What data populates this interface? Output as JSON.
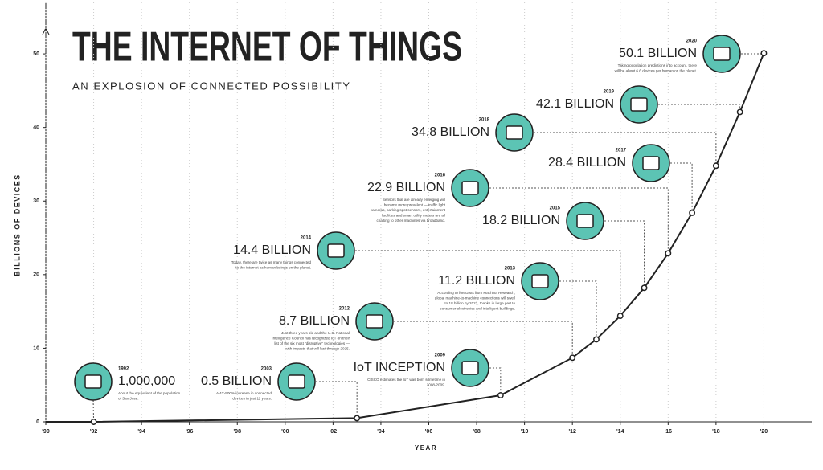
{
  "chart_data": {
    "type": "line",
    "title": "THE INTERNET OF THINGS",
    "subtitle": "AN EXPLOSION OF CONNECTED POSSIBILITY",
    "y_label": "BILLIONS OF DEVICES",
    "x_label": "YEAR",
    "x": [
      1990,
      1992,
      2003,
      2009,
      2012,
      2013,
      2014,
      2015,
      2016,
      2017,
      2018,
      2019,
      2020
    ],
    "values": [
      0,
      0.001,
      0.5,
      3.6,
      8.7,
      11.2,
      14.4,
      18.2,
      22.9,
      28.4,
      34.8,
      42.1,
      50.1
    ],
    "color": "#222222",
    "icon_color": "#5cc4b4",
    "xlim": [
      1990,
      2022
    ],
    "ylim": [
      0,
      57
    ],
    "xticks": [
      {
        "value": 1990,
        "label": "'90"
      },
      {
        "value": 1992,
        "label": "'92"
      },
      {
        "value": 1994,
        "label": "'94"
      },
      {
        "value": 1996,
        "label": "'96"
      },
      {
        "value": 1998,
        "label": "'98"
      },
      {
        "value": 2000,
        "label": "'00"
      },
      {
        "value": 2002,
        "label": "'02"
      },
      {
        "value": 2004,
        "label": "'04"
      },
      {
        "value": 2006,
        "label": "'06"
      },
      {
        "value": 2008,
        "label": "'08"
      },
      {
        "value": 2010,
        "label": "'10"
      },
      {
        "value": 2012,
        "label": "'12"
      },
      {
        "value": 2014,
        "label": "'14"
      },
      {
        "value": 2016,
        "label": "'16"
      },
      {
        "value": 2018,
        "label": "'18"
      },
      {
        "value": 2020,
        "label": "'20"
      }
    ],
    "yticks": [
      0,
      10,
      20,
      30,
      40,
      50
    ],
    "grid": true,
    "annotations": [
      {
        "point": 1,
        "year": "1992",
        "label": "1,000,000",
        "text": [
          "About the equivalent of the population",
          "of San Jose."
        ]
      },
      {
        "point": 2,
        "year": "2003",
        "label": "0.5 BILLION",
        "text": [
          "A 4X-500% increase in connected",
          "devices in just 11 years."
        ]
      },
      {
        "point": 3,
        "year": "2009",
        "label": "IoT INCEPTION",
        "text": [
          "CISCO estimates the IoT was born sometime in",
          "2008-2009."
        ]
      },
      {
        "point": 4,
        "year": "2012",
        "label": "8.7 BILLION",
        "text": [
          "Just three years old and the U.S. National",
          "Intelligence Council has recognized IoT on their",
          "list of the six most \"disruptive\" technologies —",
          "with impacts that will last through 2025."
        ]
      },
      {
        "point": 5,
        "year": "2013",
        "label": "11.2 BILLION",
        "text": [
          "According to forecasts from Machina Research,",
          "global machine-to-machine connections will swell",
          "to 18 billion by 2022, thanks in large part to",
          "consumer electronics and intelligent buildings."
        ]
      },
      {
        "point": 6,
        "year": "2014",
        "label": "14.4 BILLION",
        "text": [
          "Today, there are twice as many things connected",
          "to the Internet as human beings on the planet."
        ]
      },
      {
        "point": 7,
        "year": "2015",
        "label": "18.2 BILLION",
        "text": []
      },
      {
        "point": 8,
        "year": "2016",
        "label": "22.9 BILLION",
        "text": [
          "Sensors that are already emerging will",
          "become more prevalent — traffic light",
          "cameras, parking spot sensors, entertainment",
          "facilities and smart utility meters are all",
          "chatting to other machines via broadband."
        ]
      },
      {
        "point": 9,
        "year": "2017",
        "label": "28.4 BILLION",
        "text": []
      },
      {
        "point": 10,
        "year": "2018",
        "label": "34.8 BILLION",
        "text": []
      },
      {
        "point": 11,
        "year": "2019",
        "label": "42.1 BILLION",
        "text": []
      },
      {
        "point": 12,
        "year": "2020",
        "label": "50.1 BILLION",
        "text": [
          "Taking population predictions into account, there",
          "will be about 6.6 devices per human on the planet."
        ]
      }
    ]
  }
}
